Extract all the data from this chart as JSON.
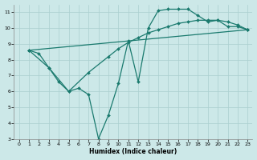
{
  "xlabel": "Humidex (Indice chaleur)",
  "bg_color": "#cce8e8",
  "grid_color": "#aacfcf",
  "line_color": "#1a7a6e",
  "xlim": [
    -0.5,
    23.5
  ],
  "ylim": [
    3,
    11.5
  ],
  "xticks": [
    0,
    1,
    2,
    3,
    4,
    5,
    6,
    7,
    8,
    9,
    10,
    11,
    12,
    13,
    14,
    15,
    16,
    17,
    18,
    19,
    20,
    21,
    22,
    23
  ],
  "yticks": [
    3,
    4,
    5,
    6,
    7,
    8,
    9,
    10,
    11
  ],
  "series": [
    {
      "x": [
        1,
        2,
        3,
        4,
        5,
        6,
        7,
        8,
        9,
        10,
        11,
        12,
        13,
        14,
        15,
        16,
        17,
        18,
        19,
        20,
        21,
        22,
        23
      ],
      "y": [
        8.6,
        8.4,
        7.5,
        6.6,
        6.0,
        6.2,
        5.8,
        3.0,
        4.5,
        6.5,
        9.2,
        6.6,
        10.0,
        11.1,
        11.2,
        11.2,
        11.2,
        10.8,
        10.4,
        10.5,
        10.1,
        10.1,
        9.9
      ]
    },
    {
      "x": [
        1,
        23
      ],
      "y": [
        8.6,
        9.9
      ]
    },
    {
      "x": [
        1,
        3,
        5,
        7,
        9,
        10,
        11,
        12,
        13,
        14,
        15,
        16,
        17,
        18,
        19,
        20,
        21,
        22,
        23
      ],
      "y": [
        8.6,
        7.5,
        6.0,
        7.2,
        8.2,
        8.7,
        9.1,
        9.4,
        9.7,
        9.9,
        10.1,
        10.3,
        10.4,
        10.5,
        10.5,
        10.5,
        10.4,
        10.2,
        9.9
      ]
    }
  ]
}
